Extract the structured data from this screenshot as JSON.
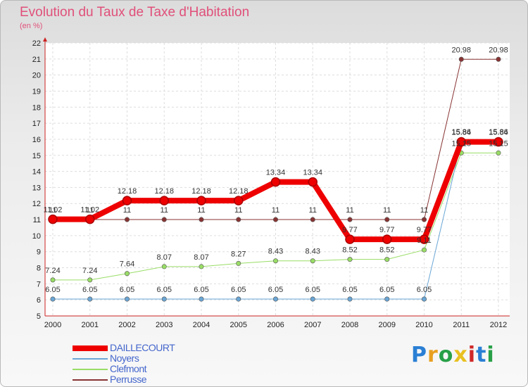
{
  "title": "Evolution du Taux de Taxe d'Habitation",
  "subtitle": "(en %)",
  "logo": {
    "text": "Proxiti",
    "letter_colors": [
      "#2a7fd4",
      "#e8a020",
      "#28a048",
      "#e8c020",
      "#d02828",
      "#2a7fd4",
      "#28a048"
    ]
  },
  "chart_data": {
    "type": "line",
    "x": [
      "2000",
      "2001",
      "2002",
      "2003",
      "2004",
      "2005",
      "2006",
      "2007",
      "2008",
      "2009",
      "2010",
      "2011",
      "2012"
    ],
    "ylim": [
      5,
      22
    ],
    "yticks": [
      5,
      6,
      7,
      8,
      9,
      10,
      11,
      12,
      13,
      14,
      15,
      16,
      17,
      18,
      19,
      20,
      21,
      22
    ],
    "grid": true,
    "series": [
      {
        "name": "DAILLECOURT",
        "color": "#ee0000",
        "width": 8,
        "values": [
          11.02,
          11.02,
          12.18,
          12.18,
          12.18,
          12.18,
          13.34,
          13.34,
          9.77,
          9.77,
          9.77,
          15.84,
          15.84
        ],
        "labels": [
          "11.02",
          "11.02",
          "12.18",
          "12.18",
          "12.18",
          "12.18",
          "13.34",
          "13.34",
          "9.77",
          "9.77",
          "9.77",
          "15.84",
          "15.84"
        ]
      },
      {
        "name": "Noyers",
        "color": "#6aa6d6",
        "width": 1,
        "values": [
          6.05,
          6.05,
          6.05,
          6.05,
          6.05,
          6.05,
          6.05,
          6.05,
          6.05,
          6.05,
          6.05,
          15.86,
          15.86
        ],
        "labels": [
          "6.05",
          "6.05",
          "6.05",
          "6.05",
          "6.05",
          "6.05",
          "6.05",
          "6.05",
          "6.05",
          "6.05",
          "6.05",
          "15.86",
          "15.86"
        ]
      },
      {
        "name": "Clefmont",
        "color": "#99dd66",
        "width": 1,
        "values": [
          7.24,
          7.24,
          7.64,
          8.07,
          8.07,
          8.27,
          8.43,
          8.43,
          8.52,
          8.52,
          9.11,
          15.15,
          15.15
        ],
        "labels": [
          "7.24",
          "7.24",
          "7.64",
          "8.07",
          "8.07",
          "8.27",
          "8.43",
          "8.43",
          "8.52",
          "8.52",
          "9.11",
          "15.15",
          "15.15"
        ]
      },
      {
        "name": "Perrusse",
        "color": "#883333",
        "width": 1,
        "values": [
          11,
          11,
          11,
          11,
          11,
          11,
          11,
          11,
          11,
          11,
          11,
          20.98,
          20.98
        ],
        "labels": [
          "11",
          "11",
          "11",
          "11",
          "11",
          "11",
          "11",
          "11",
          "11",
          "11",
          "11",
          "20.98",
          "20.98"
        ]
      }
    ]
  }
}
